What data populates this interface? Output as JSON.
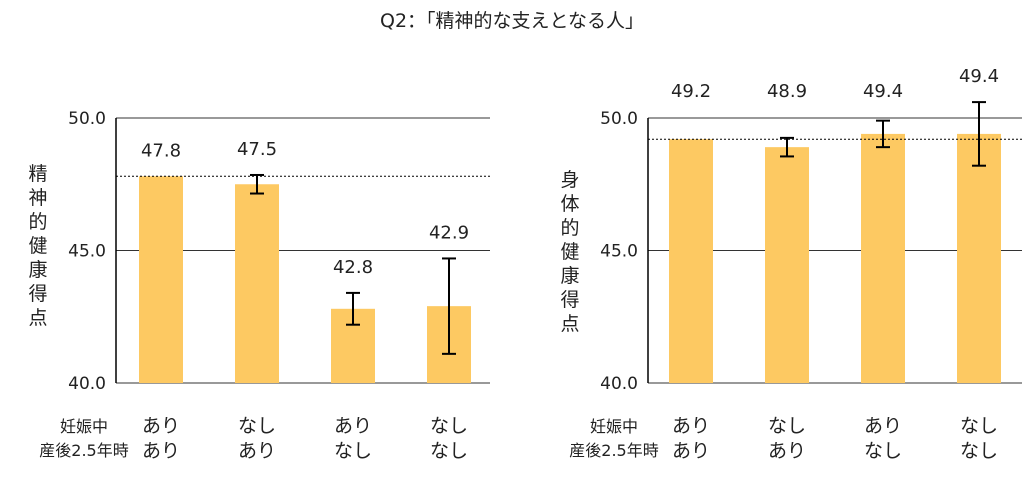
{
  "title": "Q2：「精神的な支えとなる人」",
  "row_labels": [
    "妊娠中",
    "産後2.5年時"
  ],
  "colors": {
    "bar": "#fdc962",
    "axis": "#000000",
    "grid": "#333333",
    "text": "#222222"
  },
  "chart_data": [
    {
      "type": "bar",
      "ylabel": "精神的健康得点",
      "ylim": [
        40.0,
        50.0
      ],
      "yticks": [
        "40.0",
        "45.0",
        "50.0"
      ],
      "categories": [
        [
          "あり",
          "あり"
        ],
        [
          "なし",
          "あり"
        ],
        [
          "あり",
          "なし"
        ],
        [
          "なし",
          "なし"
        ]
      ],
      "values": [
        47.8,
        47.5,
        42.8,
        42.9
      ],
      "value_labels": [
        "47.8",
        "47.5",
        "42.8",
        "42.9"
      ],
      "error": [
        null,
        0.35,
        0.6,
        1.8
      ],
      "reference_line": 47.8,
      "grid": true
    },
    {
      "type": "bar",
      "ylabel": "身体的健康得点",
      "ylim": [
        40.0,
        50.0
      ],
      "yticks": [
        "40.0",
        "45.0",
        "50.0"
      ],
      "categories": [
        [
          "あり",
          "あり"
        ],
        [
          "なし",
          "あり"
        ],
        [
          "あり",
          "なし"
        ],
        [
          "なし",
          "なし"
        ]
      ],
      "values": [
        49.2,
        48.9,
        49.4,
        49.4
      ],
      "value_labels": [
        "49.2",
        "48.9",
        "49.4",
        "49.4"
      ],
      "error": [
        null,
        0.35,
        0.5,
        1.2
      ],
      "reference_line": 49.2,
      "grid": true
    }
  ]
}
